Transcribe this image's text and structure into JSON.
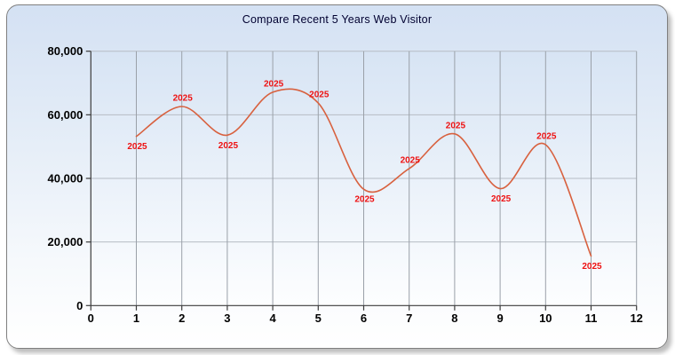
{
  "chart_data": {
    "type": "line",
    "title": "Compare Recent 5 Years Web Visitor",
    "point_label": "2025",
    "series": [
      {
        "name": "2025",
        "x": [
          1,
          2,
          3,
          4,
          5,
          6,
          7,
          8,
          9,
          10,
          11
        ],
        "values": [
          53200,
          62600,
          53600,
          67100,
          63700,
          36600,
          43100,
          54000,
          36800,
          50600,
          15600
        ],
        "label_positions": [
          "below",
          "above",
          "below",
          "above",
          "above",
          "below",
          "above",
          "above",
          "below",
          "above",
          "below"
        ]
      }
    ],
    "xlim": [
      0,
      12
    ],
    "ylim": [
      0,
      80000
    ],
    "x_tick_values": [
      0,
      1,
      2,
      3,
      4,
      5,
      6,
      7,
      8,
      9,
      10,
      11,
      12
    ],
    "x_tick_labels": [
      "0",
      "1",
      "2",
      "3",
      "4",
      "5",
      "6",
      "7",
      "8",
      "9",
      "10",
      "11",
      "12"
    ],
    "y_tick_values": [
      0,
      20000,
      40000,
      60000,
      80000
    ],
    "y_tick_labels": [
      "0",
      "20,000",
      "40,000",
      "60,000",
      "80,000"
    ],
    "grid": true,
    "legend_position": "none",
    "curve_style": "spline"
  },
  "colors": {
    "line": "#d8613f",
    "point_label": "#ee1111",
    "title": "#000030",
    "axis": "#3c3c3c",
    "grid_vertical": "#9aa0a8",
    "grid_horizontal": "#b6bcc4",
    "tick_label": "#000000",
    "panel_border": "#7f7f7f",
    "panel_gradient_top": "#d4e1f3",
    "panel_gradient_bottom": "#ffffff",
    "plot_gradient_top": "#d7e4f4",
    "plot_gradient_bottom": "#fdfeff"
  }
}
